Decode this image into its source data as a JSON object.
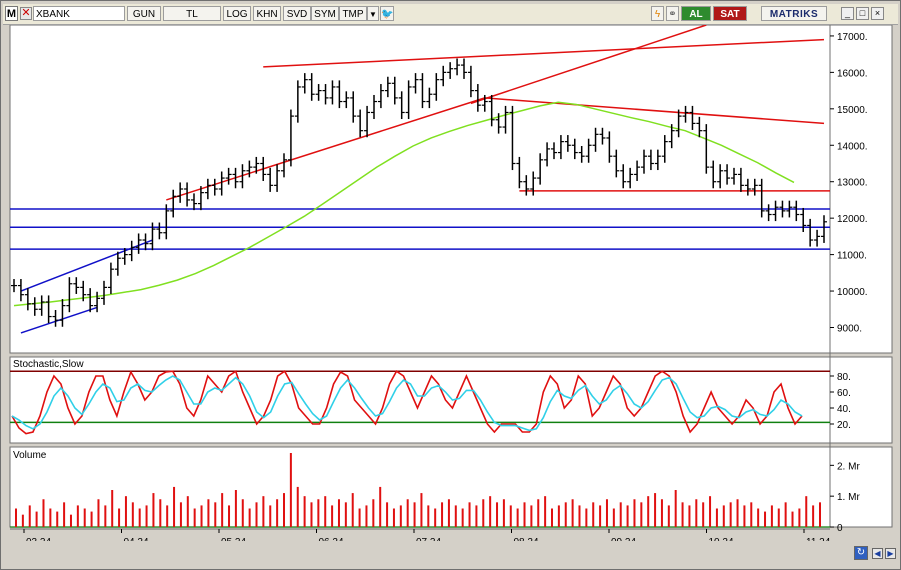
{
  "toolbar": {
    "logo": "M",
    "close": "✕",
    "symbol": "XBANK",
    "buttons": [
      "GUN",
      "TL",
      "LOG",
      "KHN",
      "SVD",
      "SYM",
      "TMP"
    ],
    "buy_label": "AL",
    "sell_label": "SAT",
    "brand": "MATRIKS",
    "window_controls": [
      "_",
      "□",
      "×"
    ],
    "icons": [
      "dropdown-arrow-icon",
      "twitter-bird-icon",
      "lightning-icon",
      "chain-link-icon",
      "refresh-icon"
    ]
  },
  "colors": {
    "price": "#000000",
    "ma": "#80e020",
    "trend_red": "#e01010",
    "trend_blue": "#1010c8",
    "stoch_k": "#e01010",
    "stoch_d": "#30d0e8",
    "volume": "#e01010"
  },
  "chart_data": [
    {
      "type": "ohlc",
      "name": "price",
      "ylim": [
        8300,
        17300
      ],
      "y_ticks": [
        "17000.",
        "16000.",
        "15000.",
        "14000.",
        "13000.",
        "12000.",
        "11000.",
        "10000.",
        "9000."
      ],
      "x_ticks": [
        "03.24",
        "04.24",
        "05.24",
        "06.24",
        "07.24",
        "08.24",
        "09.24",
        "10.24",
        "11.24"
      ],
      "closes": [
        10150,
        9900,
        9650,
        9500,
        9700,
        9300,
        9200,
        9600,
        10200,
        10100,
        9900,
        9600,
        9800,
        10100,
        10600,
        10900,
        11000,
        11200,
        11400,
        11300,
        11700,
        11600,
        12200,
        12600,
        12800,
        12500,
        12400,
        12700,
        12900,
        12800,
        13100,
        13200,
        13000,
        13300,
        13400,
        13500,
        13200,
        12900,
        13300,
        13600,
        14800,
        15600,
        15800,
        15400,
        15500,
        15300,
        15600,
        15200,
        15300,
        14800,
        14400,
        14900,
        15200,
        15500,
        15700,
        15300,
        14900,
        15600,
        15800,
        15200,
        15400,
        15800,
        16000,
        16100,
        16200,
        16000,
        15500,
        15100,
        15200,
        14700,
        14500,
        14900,
        13500,
        13000,
        12800,
        13100,
        13600,
        13900,
        13800,
        14100,
        14000,
        13800,
        13700,
        14000,
        14300,
        14200,
        13700,
        13300,
        13000,
        13200,
        13400,
        13700,
        13500,
        13700,
        14100,
        14400,
        14800,
        14900,
        14600,
        14400,
        13400,
        13000,
        13300,
        13100,
        13200,
        12900,
        12800,
        12900,
        12200,
        12100,
        12300,
        12200,
        12300,
        12100,
        11800,
        11400,
        11500,
        11900
      ],
      "ma_values": [
        9600,
        9650,
        9700,
        9760,
        9820,
        9880,
        9960,
        10040,
        10160,
        10300,
        10480,
        10700,
        10950,
        11200,
        11480,
        11760,
        12050,
        12380,
        12720,
        13060,
        13400,
        13700,
        13980,
        14200,
        14380,
        14540,
        14680,
        14820,
        14950,
        15080,
        15180,
        15120,
        15000,
        14880,
        14760,
        14650,
        14520,
        14400,
        14200,
        14000,
        13760,
        13520,
        13240,
        12980
      ],
      "ma_dates": [
        "03.24",
        "03.24",
        "03.24",
        "03.24",
        "03.24",
        "03.24",
        "04.24",
        "04.24",
        "04.24",
        "04.24",
        "04.24",
        "04.24",
        "05.24",
        "05.24",
        "05.24",
        "05.24",
        "05.24",
        "06.24",
        "06.24",
        "06.24",
        "06.24",
        "07.24",
        "07.24",
        "07.24",
        "07.24",
        "07.24",
        "07.24",
        "08.24",
        "08.24",
        "08.24",
        "08.24",
        "08.24",
        "09.24",
        "09.24",
        "09.24",
        "09.24",
        "09.24",
        "10.24",
        "10.24",
        "10.24",
        "10.24",
        "10.24",
        "11.24",
        "11.24"
      ],
      "horizontal_levels": [
        12250,
        11750,
        11150
      ],
      "red_levels": [
        12750
      ]
    },
    {
      "type": "line",
      "title": "Stochastic,Slow",
      "ylim": [
        0,
        100
      ],
      "y_ticks": [
        "80.",
        "60.",
        "40.",
        "20."
      ],
      "bands": [
        86,
        22
      ],
      "k": [
        30,
        15,
        8,
        10,
        30,
        60,
        80,
        70,
        40,
        20,
        30,
        60,
        80,
        80,
        50,
        30,
        60,
        85,
        70,
        50,
        60,
        80,
        85,
        86,
        70,
        40,
        30,
        50,
        80,
        70,
        60,
        80,
        86,
        60,
        40,
        20,
        30,
        50,
        80,
        86,
        70,
        40,
        30,
        20,
        20,
        40,
        70,
        85,
        80,
        50,
        40,
        30,
        20,
        40,
        70,
        86,
        80,
        60,
        40,
        60,
        80,
        70,
        50,
        40,
        60,
        80,
        60,
        40,
        20,
        10,
        20,
        20,
        20,
        10,
        10,
        20,
        60,
        80,
        70,
        40,
        50,
        80,
        70,
        30,
        40,
        60,
        80,
        70,
        40,
        30,
        40,
        60,
        80,
        86,
        80,
        60,
        30,
        10,
        20,
        40,
        60,
        40,
        30,
        20,
        30,
        50,
        40,
        20,
        30,
        60,
        70,
        40,
        20,
        30
      ],
      "d": [
        30,
        25,
        18,
        14,
        20,
        35,
        55,
        65,
        55,
        40,
        32,
        45,
        60,
        70,
        65,
        48,
        50,
        65,
        70,
        62,
        60,
        68,
        75,
        80,
        75,
        60,
        45,
        45,
        60,
        65,
        62,
        70,
        78,
        70,
        55,
        35,
        28,
        35,
        55,
        70,
        72,
        58,
        45,
        33,
        25,
        30,
        48,
        65,
        75,
        65,
        52,
        40,
        30,
        33,
        48,
        65,
        75,
        70,
        55,
        55,
        65,
        68,
        60,
        50,
        52,
        62,
        62,
        50,
        35,
        22,
        18,
        18,
        18,
        15,
        12,
        14,
        28,
        48,
        62,
        55,
        52,
        62,
        68,
        55,
        45,
        50,
        62,
        68,
        58,
        45,
        40,
        48,
        62,
        75,
        78,
        70,
        52,
        35,
        28,
        30,
        40,
        42,
        38,
        30,
        28,
        35,
        38,
        32,
        30,
        38,
        50,
        45,
        35,
        30
      ]
    },
    {
      "type": "bar",
      "title": "Volume",
      "ylim": [
        0,
        2.4
      ],
      "y_ticks": [
        "2. Mr",
        "1. Mr",
        "0"
      ],
      "values": [
        0.6,
        0.4,
        0.7,
        0.5,
        0.9,
        0.6,
        0.5,
        0.8,
        0.4,
        0.7,
        0.6,
        0.5,
        0.9,
        0.7,
        1.2,
        0.6,
        1.0,
        0.8,
        0.6,
        0.7,
        1.1,
        0.9,
        0.7,
        1.3,
        0.8,
        1.0,
        0.6,
        0.7,
        0.9,
        0.8,
        1.1,
        0.7,
        1.2,
        0.9,
        0.6,
        0.8,
        1.0,
        0.7,
        0.9,
        1.1,
        2.5,
        1.3,
        1.0,
        0.8,
        0.9,
        1.0,
        0.7,
        0.9,
        0.8,
        1.1,
        0.6,
        0.7,
        0.9,
        1.3,
        0.8,
        0.6,
        0.7,
        0.9,
        0.8,
        1.1,
        0.7,
        0.6,
        0.8,
        0.9,
        0.7,
        0.6,
        0.8,
        0.7,
        0.9,
        1.0,
        0.8,
        0.9,
        0.7,
        0.6,
        0.8,
        0.7,
        0.9,
        1.0,
        0.6,
        0.7,
        0.8,
        0.9,
        0.7,
        0.6,
        0.8,
        0.7,
        0.9,
        0.6,
        0.8,
        0.7,
        0.9,
        0.8,
        1.0,
        1.1,
        0.9,
        0.7,
        1.2,
        0.8,
        0.7,
        0.9,
        0.8,
        1.0,
        0.6,
        0.7,
        0.8,
        0.9,
        0.7,
        0.8,
        0.6,
        0.5,
        0.7,
        0.6,
        0.8,
        0.5,
        0.6,
        1.0,
        0.7,
        0.8
      ]
    }
  ]
}
